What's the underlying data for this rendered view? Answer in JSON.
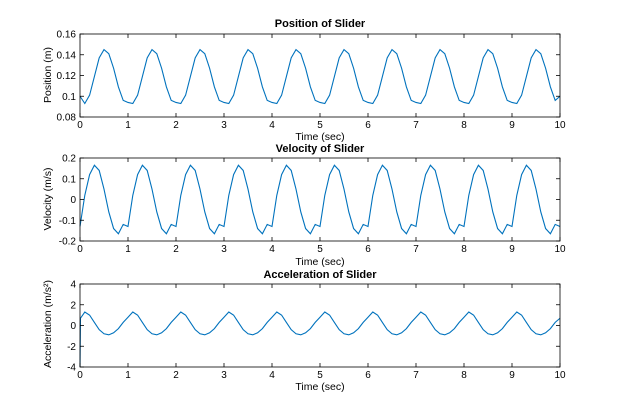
{
  "figure": {
    "background": "#ffffff",
    "line_color": "#0072bd"
  },
  "chart_data": [
    {
      "type": "line",
      "title": "Position of Slider",
      "xlabel": "Time (sec)",
      "ylabel": "Position (m)",
      "xlim": [
        0,
        10
      ],
      "ylim": [
        0.08,
        0.16
      ],
      "xticks": [
        "0",
        "1",
        "2",
        "3",
        "4",
        "5",
        "6",
        "7",
        "8",
        "9",
        "10"
      ],
      "yticks": [
        "0.08",
        "0.1",
        "0.12",
        "0.14",
        "0.16"
      ],
      "grid": false,
      "series": [
        {
          "x": [
            0,
            0.1,
            0.2,
            0.3,
            0.4,
            0.5,
            0.6,
            0.7,
            0.8,
            0.9,
            1.0,
            1.1,
            1.2,
            1.3,
            1.4,
            1.5,
            1.6,
            1.7,
            1.8,
            1.9,
            2.0,
            2.1,
            2.2,
            2.3,
            2.4,
            2.5,
            2.6,
            2.7,
            2.8,
            2.9,
            3.0,
            3.1,
            3.2,
            3.3,
            3.4,
            3.5,
            3.6,
            3.7,
            3.8,
            3.9,
            4.0,
            4.1,
            4.2,
            4.3,
            4.4,
            4.5,
            4.6,
            4.7,
            4.8,
            4.9,
            5.0,
            5.1,
            5.2,
            5.3,
            5.4,
            5.5,
            5.6,
            5.7,
            5.8,
            5.9,
            6.0,
            6.1,
            6.2,
            6.3,
            6.4,
            6.5,
            6.6,
            6.7,
            6.8,
            6.9,
            7.0,
            7.1,
            7.2,
            7.3,
            7.4,
            7.5,
            7.6,
            7.7,
            7.8,
            7.9,
            8.0,
            8.1,
            8.2,
            8.3,
            8.4,
            8.5,
            8.6,
            8.7,
            8.8,
            8.9,
            9.0,
            9.1,
            9.2,
            9.3,
            9.4,
            9.5,
            9.6,
            9.7,
            9.8,
            9.9,
            10.0
          ],
          "y": [
            0.1,
            0.093,
            0.101,
            0.119,
            0.137,
            0.145,
            0.141,
            0.127,
            0.109,
            0.096,
            0.094,
            0.093,
            0.101,
            0.119,
            0.137,
            0.145,
            0.141,
            0.127,
            0.109,
            0.096,
            0.094,
            0.093,
            0.101,
            0.119,
            0.137,
            0.145,
            0.141,
            0.127,
            0.109,
            0.096,
            0.094,
            0.093,
            0.101,
            0.119,
            0.137,
            0.145,
            0.141,
            0.127,
            0.109,
            0.096,
            0.094,
            0.093,
            0.101,
            0.119,
            0.137,
            0.145,
            0.141,
            0.127,
            0.109,
            0.096,
            0.094,
            0.093,
            0.101,
            0.119,
            0.137,
            0.145,
            0.141,
            0.127,
            0.109,
            0.096,
            0.094,
            0.093,
            0.101,
            0.119,
            0.137,
            0.145,
            0.141,
            0.127,
            0.109,
            0.096,
            0.094,
            0.093,
            0.101,
            0.119,
            0.137,
            0.145,
            0.141,
            0.127,
            0.109,
            0.096,
            0.094,
            0.093,
            0.101,
            0.119,
            0.137,
            0.145,
            0.141,
            0.127,
            0.109,
            0.096,
            0.094,
            0.093,
            0.101,
            0.119,
            0.137,
            0.145,
            0.141,
            0.127,
            0.109,
            0.096,
            0.1
          ]
        }
      ]
    },
    {
      "type": "line",
      "title": "Velocity of Slider",
      "xlabel": "Time (sec)",
      "ylabel": "Velocity (m/s)",
      "xlim": [
        0,
        10
      ],
      "ylim": [
        -0.2,
        0.2
      ],
      "xticks": [
        "0",
        "1",
        "2",
        "3",
        "4",
        "5",
        "6",
        "7",
        "8",
        "9",
        "10"
      ],
      "yticks": [
        "-0.2",
        "-0.1",
        "0",
        "0.1",
        "0.2"
      ],
      "grid": false,
      "series": [
        {
          "x": [
            0,
            0.1,
            0.2,
            0.3,
            0.4,
            0.5,
            0.6,
            0.7,
            0.8,
            0.9,
            1.0,
            1.1,
            1.2,
            1.3,
            1.4,
            1.5,
            1.6,
            1.7,
            1.8,
            1.9,
            2.0,
            2.1,
            2.2,
            2.3,
            2.4,
            2.5,
            2.6,
            2.7,
            2.8,
            2.9,
            3.0,
            3.1,
            3.2,
            3.3,
            3.4,
            3.5,
            3.6,
            3.7,
            3.8,
            3.9,
            4.0,
            4.1,
            4.2,
            4.3,
            4.4,
            4.5,
            4.6,
            4.7,
            4.8,
            4.9,
            5.0,
            5.1,
            5.2,
            5.3,
            5.4,
            5.5,
            5.6,
            5.7,
            5.8,
            5.9,
            6.0,
            6.1,
            6.2,
            6.3,
            6.4,
            6.5,
            6.6,
            6.7,
            6.8,
            6.9,
            7.0,
            7.1,
            7.2,
            7.3,
            7.4,
            7.5,
            7.6,
            7.7,
            7.8,
            7.9,
            8.0,
            8.1,
            8.2,
            8.3,
            8.4,
            8.5,
            8.6,
            8.7,
            8.8,
            8.9,
            9.0,
            9.1,
            9.2,
            9.3,
            9.4,
            9.5,
            9.6,
            9.7,
            9.8,
            9.9,
            10.0
          ],
          "y": [
            -0.13,
            0.02,
            0.12,
            0.165,
            0.14,
            0.05,
            -0.06,
            -0.14,
            -0.165,
            -0.12,
            -0.13,
            0.02,
            0.12,
            0.165,
            0.14,
            0.05,
            -0.06,
            -0.14,
            -0.165,
            -0.12,
            -0.13,
            0.02,
            0.12,
            0.165,
            0.14,
            0.05,
            -0.06,
            -0.14,
            -0.165,
            -0.12,
            -0.13,
            0.02,
            0.12,
            0.165,
            0.14,
            0.05,
            -0.06,
            -0.14,
            -0.165,
            -0.12,
            -0.13,
            0.02,
            0.12,
            0.165,
            0.14,
            0.05,
            -0.06,
            -0.14,
            -0.165,
            -0.12,
            -0.13,
            0.02,
            0.12,
            0.165,
            0.14,
            0.05,
            -0.06,
            -0.14,
            -0.165,
            -0.12,
            -0.13,
            0.02,
            0.12,
            0.165,
            0.14,
            0.05,
            -0.06,
            -0.14,
            -0.165,
            -0.12,
            -0.13,
            0.02,
            0.12,
            0.165,
            0.14,
            0.05,
            -0.06,
            -0.14,
            -0.165,
            -0.12,
            -0.13,
            0.02,
            0.12,
            0.165,
            0.14,
            0.05,
            -0.06,
            -0.14,
            -0.165,
            -0.12,
            -0.13,
            0.02,
            0.12,
            0.165,
            0.14,
            0.05,
            -0.06,
            -0.14,
            -0.165,
            -0.12,
            -0.13
          ]
        }
      ]
    },
    {
      "type": "line",
      "title": "Acceleration of Slider",
      "xlabel": "Time (sec)",
      "ylabel": "Acceleration (m/s²)",
      "xlim": [
        0,
        10
      ],
      "ylim": [
        -4,
        4
      ],
      "xticks": [
        "0",
        "1",
        "2",
        "3",
        "4",
        "5",
        "6",
        "7",
        "8",
        "9",
        "10"
      ],
      "yticks": [
        "-4",
        "-2",
        "0",
        "2",
        "4"
      ],
      "grid": false,
      "series": [
        {
          "x": [
            0,
            0.01,
            0.1,
            0.2,
            0.3,
            0.4,
            0.5,
            0.6,
            0.7,
            0.8,
            0.9,
            1.0,
            1.1,
            1.2,
            1.3,
            1.4,
            1.5,
            1.6,
            1.7,
            1.8,
            1.9,
            2.0,
            2.1,
            2.2,
            2.3,
            2.4,
            2.5,
            2.6,
            2.7,
            2.8,
            2.9,
            3.0,
            3.1,
            3.2,
            3.3,
            3.4,
            3.5,
            3.6,
            3.7,
            3.8,
            3.9,
            4.0,
            4.1,
            4.2,
            4.3,
            4.4,
            4.5,
            4.6,
            4.7,
            4.8,
            4.9,
            5.0,
            5.1,
            5.2,
            5.3,
            5.4,
            5.5,
            5.6,
            5.7,
            5.8,
            5.9,
            6.0,
            6.1,
            6.2,
            6.3,
            6.4,
            6.5,
            6.6,
            6.7,
            6.8,
            6.9,
            7.0,
            7.1,
            7.2,
            7.3,
            7.4,
            7.5,
            7.6,
            7.7,
            7.8,
            7.9,
            8.0,
            8.1,
            8.2,
            8.3,
            8.4,
            8.5,
            8.6,
            8.7,
            8.8,
            8.9,
            9.0,
            9.1,
            9.2,
            9.3,
            9.4,
            9.5,
            9.6,
            9.7,
            9.8,
            9.9,
            10.0
          ],
          "y": [
            -4,
            0.7,
            1.3,
            1.0,
            0.3,
            -0.4,
            -0.8,
            -0.9,
            -0.7,
            -0.3,
            0.3,
            0.8,
            1.3,
            1.0,
            0.3,
            -0.4,
            -0.8,
            -0.9,
            -0.7,
            -0.3,
            0.3,
            0.8,
            1.3,
            1.0,
            0.3,
            -0.4,
            -0.8,
            -0.9,
            -0.7,
            -0.3,
            0.3,
            0.8,
            1.3,
            1.0,
            0.3,
            -0.4,
            -0.8,
            -0.9,
            -0.7,
            -0.3,
            0.3,
            0.8,
            1.3,
            1.0,
            0.3,
            -0.4,
            -0.8,
            -0.9,
            -0.7,
            -0.3,
            0.3,
            0.8,
            1.3,
            1.0,
            0.3,
            -0.4,
            -0.8,
            -0.9,
            -0.7,
            -0.3,
            0.3,
            0.8,
            1.3,
            1.0,
            0.3,
            -0.4,
            -0.8,
            -0.9,
            -0.7,
            -0.3,
            0.3,
            0.8,
            1.3,
            1.0,
            0.3,
            -0.4,
            -0.8,
            -0.9,
            -0.7,
            -0.3,
            0.3,
            0.8,
            1.3,
            1.0,
            0.3,
            -0.4,
            -0.8,
            -0.9,
            -0.7,
            -0.3,
            0.3,
            0.8,
            1.3,
            1.0,
            0.3,
            -0.4,
            -0.8,
            -0.9,
            -0.7,
            -0.3,
            0.3,
            0.7
          ]
        }
      ]
    }
  ]
}
